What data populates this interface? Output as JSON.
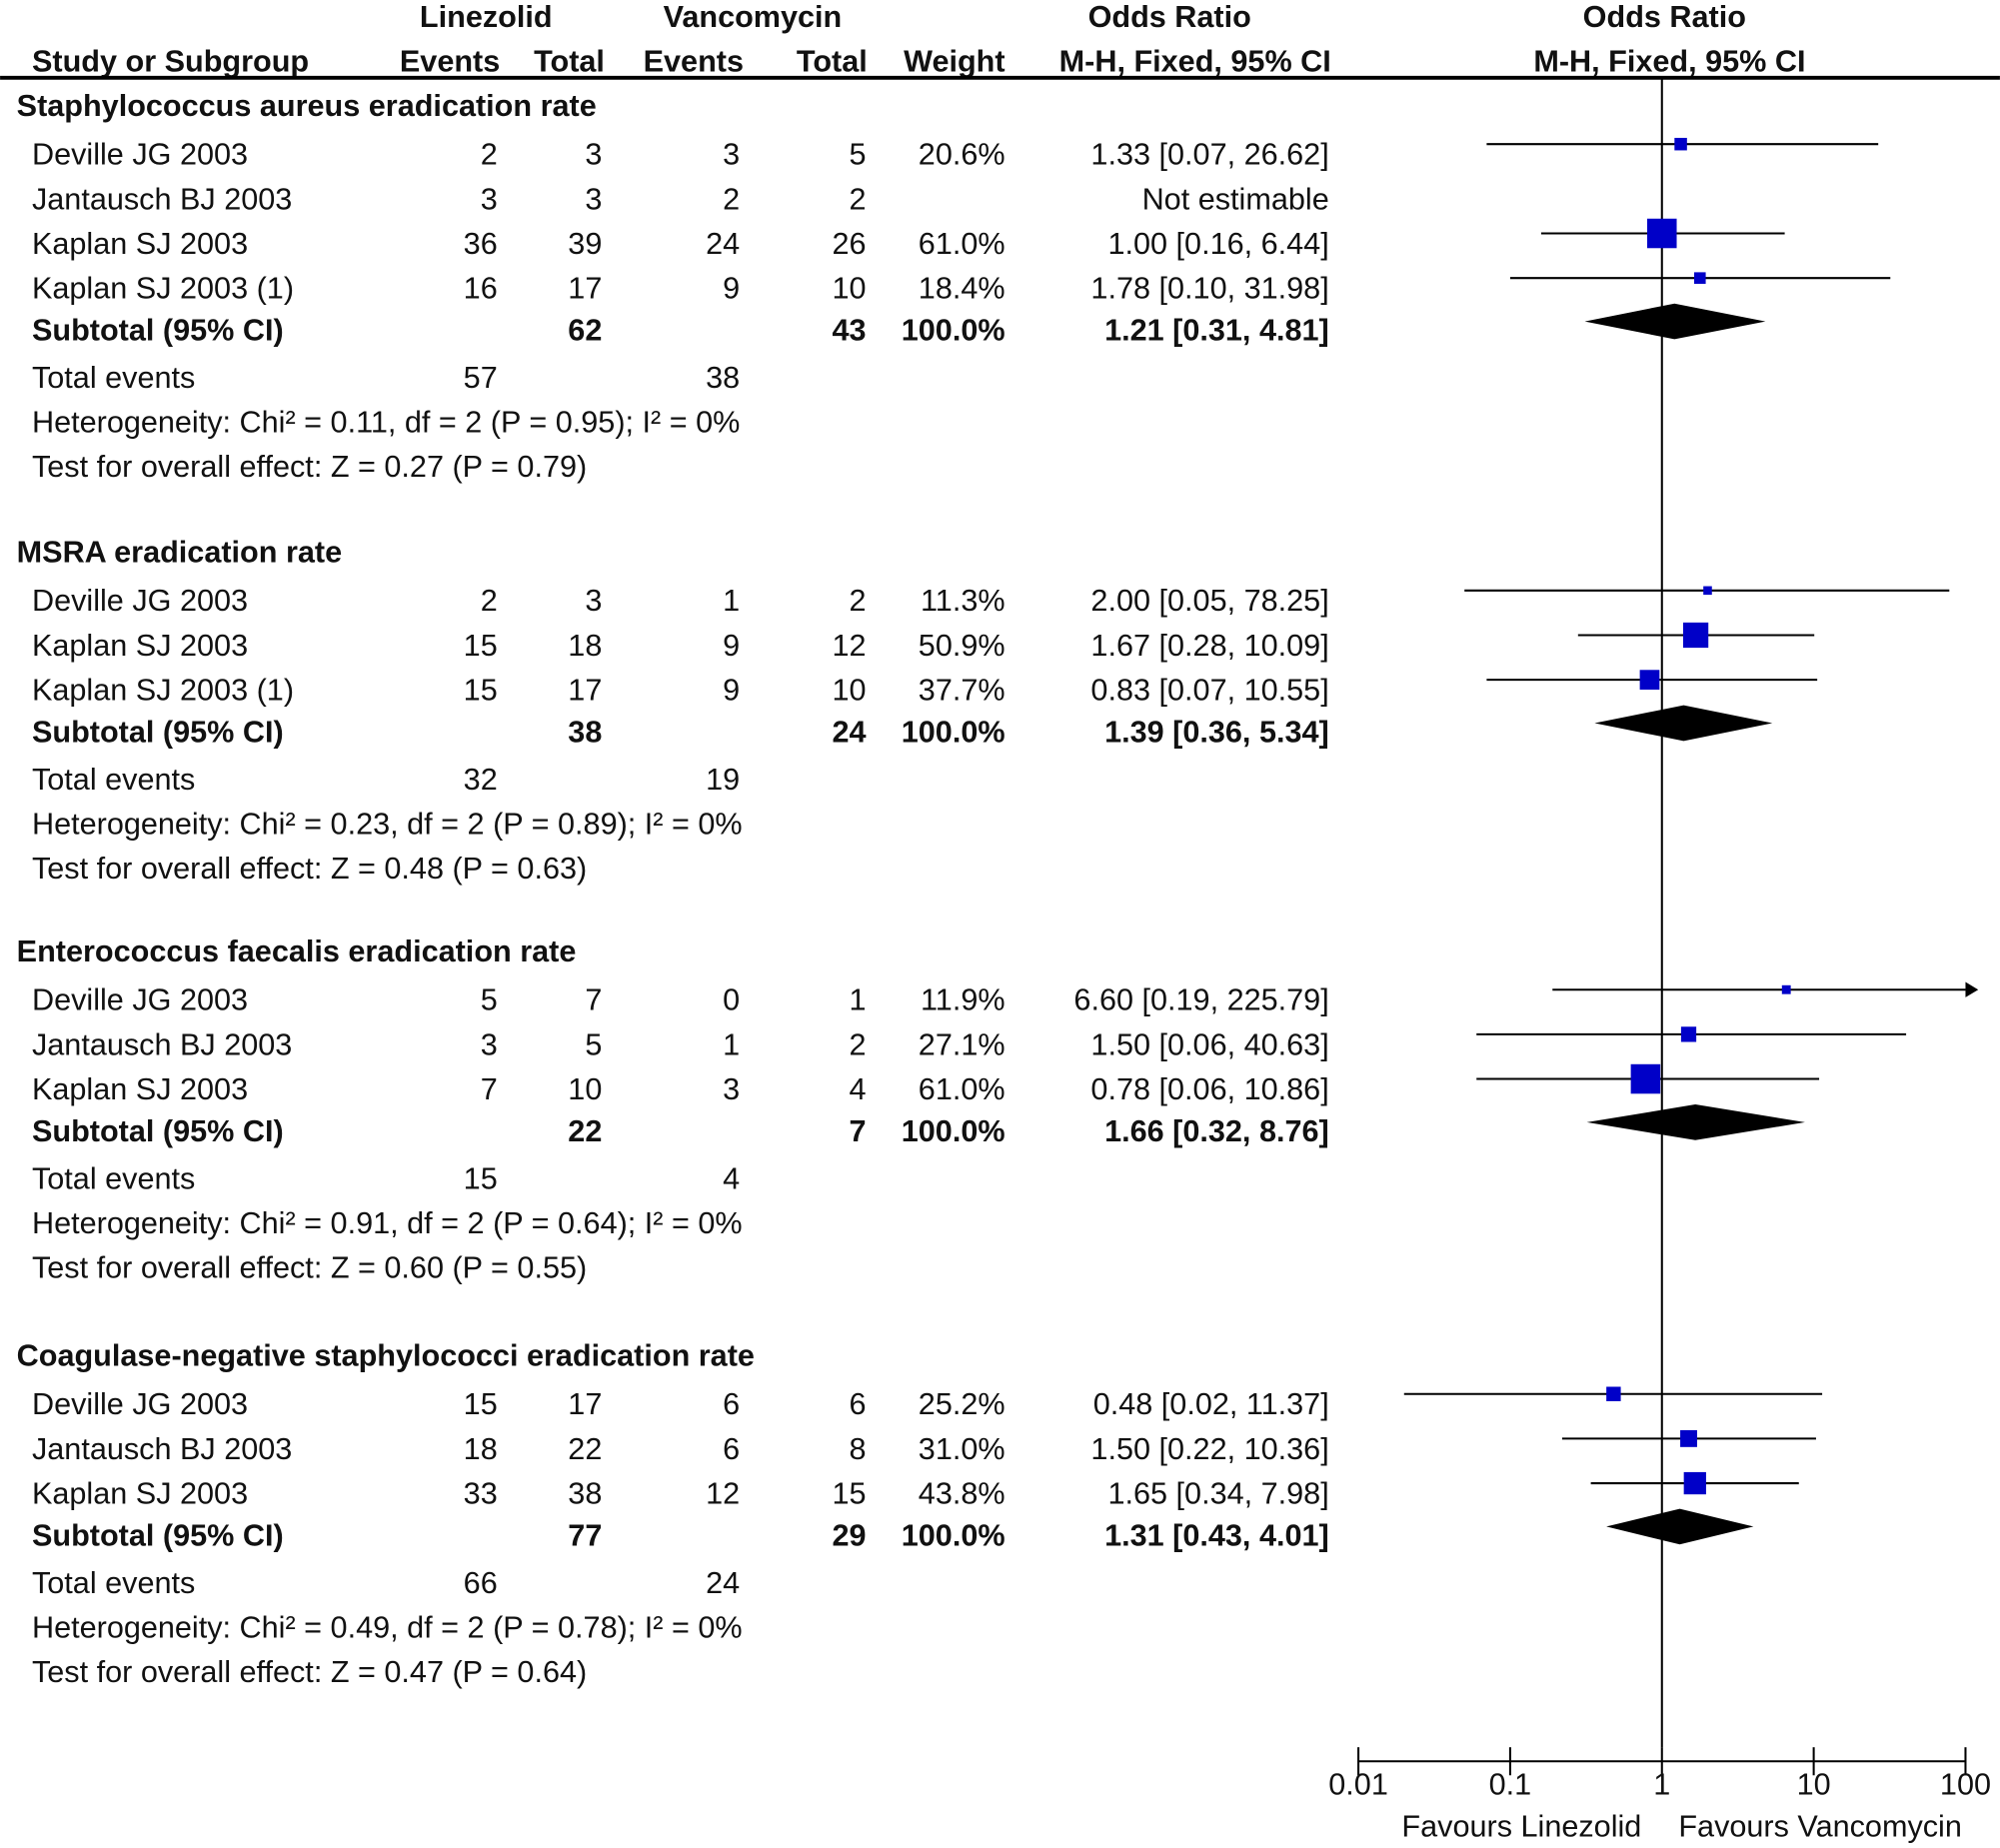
{
  "chart_data": {
    "type": "forest",
    "header": {
      "group1": "Linezolid",
      "group2": "Vancomycin",
      "effect_col": "Odds Ratio",
      "plot_col": "Odds Ratio",
      "study_col": "Study or Subgroup",
      "events": "Events",
      "total": "Total",
      "weight": "Weight",
      "method": "M-H, Fixed, 95% CI"
    },
    "x_axis": {
      "scale": "log",
      "ticks": [
        0.01,
        0.1,
        1,
        10,
        100
      ],
      "tick_labels": [
        "0.01",
        "0.1",
        "1",
        "10",
        "100"
      ],
      "left_label": "Favours Linezolid",
      "right_label": "Favours Vancomycin",
      "range": [
        0.01,
        100
      ]
    },
    "colors": {
      "study_marker": "#0000c8",
      "diamond": "#000000"
    },
    "subgroups": [
      {
        "title": "Staphylococcus aureus eradication rate",
        "studies": [
          {
            "name": "Deville JG 2003",
            "e1": "2",
            "t1": "3",
            "e2": "3",
            "t2": "5",
            "weight": "20.6%",
            "w": 20.6,
            "text": "1.33 [0.07, 26.62]",
            "or": 1.33,
            "lo": 0.07,
            "hi": 26.62
          },
          {
            "name": "Jantausch BJ 2003",
            "e1": "3",
            "t1": "3",
            "e2": "2",
            "t2": "2",
            "weight": "",
            "w": null,
            "text": "Not estimable",
            "or": null,
            "lo": null,
            "hi": null
          },
          {
            "name": "Kaplan SJ 2003",
            "e1": "36",
            "t1": "39",
            "e2": "24",
            "t2": "26",
            "weight": "61.0%",
            "w": 61.0,
            "text": "1.00 [0.16, 6.44]",
            "or": 1.0,
            "lo": 0.16,
            "hi": 6.44
          },
          {
            "name": "Kaplan SJ 2003 (1)",
            "e1": "16",
            "t1": "17",
            "e2": "9",
            "t2": "10",
            "weight": "18.4%",
            "w": 18.4,
            "text": "1.78 [0.10, 31.98]",
            "or": 1.78,
            "lo": 0.1,
            "hi": 31.98
          }
        ],
        "subtotal": {
          "label": "Subtotal (95% CI)",
          "t1": "62",
          "t2": "43",
          "weight": "100.0%",
          "text": "1.21 [0.31, 4.81]",
          "or": 1.21,
          "lo": 0.31,
          "hi": 4.81
        },
        "total_events": {
          "label": "Total events",
          "e1": "57",
          "e2": "38"
        },
        "heterogeneity": "Heterogeneity: Chi² = 0.11, df = 2 (P = 0.95); I² = 0%",
        "overall": "Test for overall effect: Z = 0.27 (P = 0.79)"
      },
      {
        "title": "MSRA eradication rate",
        "studies": [
          {
            "name": "Deville JG 2003",
            "e1": "2",
            "t1": "3",
            "e2": "1",
            "t2": "2",
            "weight": "11.3%",
            "w": 11.3,
            "text": "2.00 [0.05, 78.25]",
            "or": 2.0,
            "lo": 0.05,
            "hi": 78.25
          },
          {
            "name": "Kaplan SJ 2003",
            "e1": "15",
            "t1": "18",
            "e2": "9",
            "t2": "12",
            "weight": "50.9%",
            "w": 50.9,
            "text": "1.67 [0.28, 10.09]",
            "or": 1.67,
            "lo": 0.28,
            "hi": 10.09
          },
          {
            "name": "Kaplan SJ 2003 (1)",
            "e1": "15",
            "t1": "17",
            "e2": "9",
            "t2": "10",
            "weight": "37.7%",
            "w": 37.7,
            "text": "0.83 [0.07, 10.55]",
            "or": 0.83,
            "lo": 0.07,
            "hi": 10.55
          }
        ],
        "subtotal": {
          "label": "Subtotal (95% CI)",
          "t1": "38",
          "t2": "24",
          "weight": "100.0%",
          "text": "1.39 [0.36, 5.34]",
          "or": 1.39,
          "lo": 0.36,
          "hi": 5.34
        },
        "total_events": {
          "label": "Total events",
          "e1": "32",
          "e2": "19"
        },
        "heterogeneity": "Heterogeneity: Chi² = 0.23, df = 2 (P = 0.89); I² = 0%",
        "overall": "Test for overall effect: Z = 0.48 (P = 0.63)"
      },
      {
        "title": "Enterococcus faecalis eradication rate",
        "studies": [
          {
            "name": "Deville JG 2003",
            "e1": "5",
            "t1": "7",
            "e2": "0",
            "t2": "1",
            "weight": "11.9%",
            "w": 11.9,
            "text": "6.60 [0.19, 225.79]",
            "or": 6.6,
            "lo": 0.19,
            "hi": 225.79
          },
          {
            "name": "Jantausch BJ 2003",
            "e1": "3",
            "t1": "5",
            "e2": "1",
            "t2": "2",
            "weight": "27.1%",
            "w": 27.1,
            "text": "1.50 [0.06, 40.63]",
            "or": 1.5,
            "lo": 0.06,
            "hi": 40.63
          },
          {
            "name": "Kaplan SJ 2003",
            "e1": "7",
            "t1": "10",
            "e2": "3",
            "t2": "4",
            "weight": "61.0%",
            "w": 61.0,
            "text": "0.78 [0.06, 10.86]",
            "or": 0.78,
            "lo": 0.06,
            "hi": 10.86
          }
        ],
        "subtotal": {
          "label": "Subtotal (95% CI)",
          "t1": "22",
          "t2": "7",
          "weight": "100.0%",
          "text": "1.66 [0.32, 8.76]",
          "or": 1.66,
          "lo": 0.32,
          "hi": 8.76
        },
        "total_events": {
          "label": "Total events",
          "e1": "15",
          "e2": "4"
        },
        "heterogeneity": "Heterogeneity: Chi² = 0.91, df = 2 (P = 0.64); I² = 0%",
        "overall": "Test for overall effect: Z = 0.60 (P = 0.55)"
      },
      {
        "title": "Coagulase-negative staphylococci eradication rate",
        "studies": [
          {
            "name": "Deville JG 2003",
            "e1": "15",
            "t1": "17",
            "e2": "6",
            "t2": "6",
            "weight": "25.2%",
            "w": 25.2,
            "text": "0.48 [0.02, 11.37]",
            "or": 0.48,
            "lo": 0.02,
            "hi": 11.37
          },
          {
            "name": "Jantausch BJ 2003",
            "e1": "18",
            "t1": "22",
            "e2": "6",
            "t2": "8",
            "weight": "31.0%",
            "w": 31.0,
            "text": "1.50 [0.22, 10.36]",
            "or": 1.5,
            "lo": 0.22,
            "hi": 10.36
          },
          {
            "name": "Kaplan SJ 2003",
            "e1": "33",
            "t1": "38",
            "e2": "12",
            "t2": "15",
            "weight": "43.8%",
            "w": 43.8,
            "text": "1.65 [0.34, 7.98]",
            "or": 1.65,
            "lo": 0.34,
            "hi": 7.98
          }
        ],
        "subtotal": {
          "label": "Subtotal (95% CI)",
          "t1": "77",
          "t2": "29",
          "weight": "100.0%",
          "text": "1.31 [0.43, 4.01]",
          "or": 1.31,
          "lo": 0.43,
          "hi": 4.01
        },
        "total_events": {
          "label": "Total events",
          "e1": "66",
          "e2": "24"
        },
        "heterogeneity": "Heterogeneity: Chi² = 0.49, df = 2 (P = 0.78); I² = 0%",
        "overall": "Test for overall effect: Z = 0.47 (P = 0.64)"
      }
    ]
  }
}
